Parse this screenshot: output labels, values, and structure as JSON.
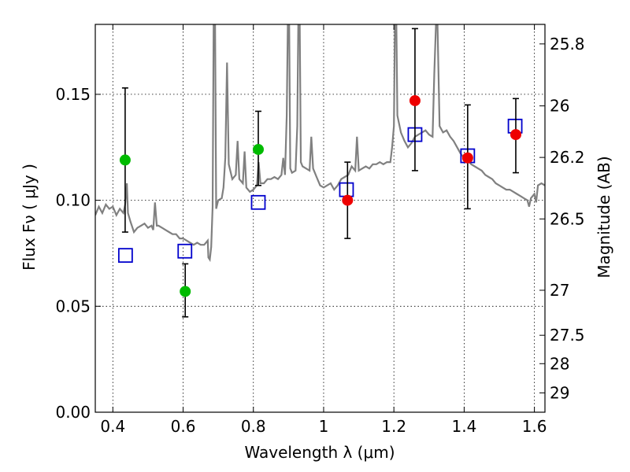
{
  "chart_data": {
    "type": "scatter",
    "xlabel": "Wavelength  λ (μm)",
    "ylabel": "Flux  Fν  ( μJy )",
    "ylabel_right": "Magnitude (AB)",
    "xlim": [
      0.35,
      1.63
    ],
    "ylim": [
      0.0,
      0.183
    ],
    "grid": true,
    "x_ticks": [
      0.4,
      0.6,
      0.8,
      1.0,
      1.2,
      1.4,
      1.6
    ],
    "x_tick_labels": [
      "0.4",
      "0.6",
      "0.8",
      "1",
      "1.2",
      "1.4",
      "1.6"
    ],
    "y_ticks": [
      0.0,
      0.05,
      0.1,
      0.15
    ],
    "y_tick_labels": [
      "0.00",
      "0.05",
      "0.10",
      "0.15"
    ],
    "right_ticks": [
      {
        "mag": 25.8,
        "label": "25.8"
      },
      {
        "mag": 26.0,
        "label": "26"
      },
      {
        "mag": 26.2,
        "label": "26.2"
      },
      {
        "mag": 26.5,
        "label": "26.5"
      },
      {
        "mag": 27.0,
        "label": "27"
      },
      {
        "mag": 27.5,
        "label": "27.5"
      },
      {
        "mag": 28.0,
        "label": "28"
      },
      {
        "mag": 29.0,
        "label": "29"
      }
    ],
    "model_spectrum": {
      "color": "#808080",
      "points": [
        [
          0.35,
          0.093
        ],
        [
          0.36,
          0.097
        ],
        [
          0.37,
          0.094
        ],
        [
          0.38,
          0.098
        ],
        [
          0.39,
          0.096
        ],
        [
          0.4,
          0.097
        ],
        [
          0.41,
          0.093
        ],
        [
          0.42,
          0.096
        ],
        [
          0.43,
          0.094
        ],
        [
          0.435,
          0.098
        ],
        [
          0.44,
          0.108
        ],
        [
          0.443,
          0.094
        ],
        [
          0.45,
          0.09
        ],
        [
          0.46,
          0.085
        ],
        [
          0.47,
          0.087
        ],
        [
          0.48,
          0.088
        ],
        [
          0.49,
          0.089
        ],
        [
          0.5,
          0.087
        ],
        [
          0.51,
          0.088
        ],
        [
          0.515,
          0.086
        ],
        [
          0.52,
          0.099
        ],
        [
          0.525,
          0.088
        ],
        [
          0.53,
          0.088
        ],
        [
          0.54,
          0.087
        ],
        [
          0.55,
          0.086
        ],
        [
          0.56,
          0.085
        ],
        [
          0.57,
          0.084
        ],
        [
          0.58,
          0.084
        ],
        [
          0.59,
          0.082
        ],
        [
          0.6,
          0.082
        ],
        [
          0.61,
          0.081
        ],
        [
          0.62,
          0.08
        ],
        [
          0.63,
          0.079
        ],
        [
          0.64,
          0.08
        ],
        [
          0.65,
          0.079
        ],
        [
          0.66,
          0.079
        ],
        [
          0.67,
          0.081
        ],
        [
          0.672,
          0.073
        ],
        [
          0.676,
          0.072
        ],
        [
          0.68,
          0.078
        ],
        [
          0.684,
          0.097
        ],
        [
          0.687,
          0.184
        ],
        [
          0.691,
          0.184
        ],
        [
          0.694,
          0.096
        ],
        [
          0.7,
          0.1
        ],
        [
          0.71,
          0.101
        ],
        [
          0.715,
          0.106
        ],
        [
          0.72,
          0.12
        ],
        [
          0.725,
          0.165
        ],
        [
          0.73,
          0.117
        ],
        [
          0.74,
          0.11
        ],
        [
          0.75,
          0.112
        ],
        [
          0.755,
          0.128
        ],
        [
          0.76,
          0.11
        ],
        [
          0.77,
          0.108
        ],
        [
          0.775,
          0.123
        ],
        [
          0.78,
          0.106
        ],
        [
          0.79,
          0.104
        ],
        [
          0.8,
          0.105
        ],
        [
          0.81,
          0.107
        ],
        [
          0.815,
          0.118
        ],
        [
          0.82,
          0.108
        ],
        [
          0.83,
          0.108
        ],
        [
          0.84,
          0.11
        ],
        [
          0.85,
          0.11
        ],
        [
          0.86,
          0.111
        ],
        [
          0.87,
          0.11
        ],
        [
          0.88,
          0.112
        ],
        [
          0.885,
          0.12
        ],
        [
          0.89,
          0.112
        ],
        [
          0.895,
          0.14
        ],
        [
          0.898,
          0.184
        ],
        [
          0.902,
          0.184
        ],
        [
          0.905,
          0.115
        ],
        [
          0.91,
          0.113
        ],
        [
          0.92,
          0.114
        ],
        [
          0.925,
          0.135
        ],
        [
          0.928,
          0.184
        ],
        [
          0.932,
          0.184
        ],
        [
          0.935,
          0.118
        ],
        [
          0.94,
          0.116
        ],
        [
          0.95,
          0.115
        ],
        [
          0.96,
          0.114
        ],
        [
          0.965,
          0.13
        ],
        [
          0.97,
          0.115
        ],
        [
          0.98,
          0.111
        ],
        [
          0.99,
          0.107
        ],
        [
          1.0,
          0.106
        ],
        [
          1.01,
          0.107
        ],
        [
          1.02,
          0.108
        ],
        [
          1.03,
          0.105
        ],
        [
          1.04,
          0.107
        ],
        [
          1.05,
          0.11
        ],
        [
          1.06,
          0.111
        ],
        [
          1.07,
          0.112
        ],
        [
          1.08,
          0.116
        ],
        [
          1.09,
          0.114
        ],
        [
          1.095,
          0.13
        ],
        [
          1.1,
          0.114
        ],
        [
          1.11,
          0.115
        ],
        [
          1.12,
          0.116
        ],
        [
          1.13,
          0.115
        ],
        [
          1.14,
          0.117
        ],
        [
          1.15,
          0.117
        ],
        [
          1.16,
          0.118
        ],
        [
          1.17,
          0.117
        ],
        [
          1.18,
          0.118
        ],
        [
          1.19,
          0.118
        ],
        [
          1.195,
          0.125
        ],
        [
          1.2,
          0.135
        ],
        [
          1.203,
          0.184
        ],
        [
          1.207,
          0.184
        ],
        [
          1.21,
          0.14
        ],
        [
          1.22,
          0.132
        ],
        [
          1.23,
          0.128
        ],
        [
          1.24,
          0.125
        ],
        [
          1.25,
          0.127
        ],
        [
          1.26,
          0.13
        ],
        [
          1.27,
          0.131
        ],
        [
          1.28,
          0.132
        ],
        [
          1.29,
          0.133
        ],
        [
          1.3,
          0.131
        ],
        [
          1.31,
          0.13
        ],
        [
          1.315,
          0.16
        ],
        [
          1.32,
          0.184
        ],
        [
          1.324,
          0.184
        ],
        [
          1.33,
          0.135
        ],
        [
          1.34,
          0.132
        ],
        [
          1.35,
          0.133
        ],
        [
          1.36,
          0.13
        ],
        [
          1.37,
          0.128
        ],
        [
          1.38,
          0.125
        ],
        [
          1.39,
          0.122
        ],
        [
          1.4,
          0.12
        ],
        [
          1.41,
          0.119
        ],
        [
          1.42,
          0.117
        ],
        [
          1.43,
          0.116
        ],
        [
          1.44,
          0.115
        ],
        [
          1.45,
          0.114
        ],
        [
          1.46,
          0.112
        ],
        [
          1.47,
          0.111
        ],
        [
          1.48,
          0.11
        ],
        [
          1.49,
          0.108
        ],
        [
          1.5,
          0.107
        ],
        [
          1.51,
          0.106
        ],
        [
          1.52,
          0.105
        ],
        [
          1.53,
          0.105
        ],
        [
          1.54,
          0.104
        ],
        [
          1.55,
          0.103
        ],
        [
          1.56,
          0.102
        ],
        [
          1.57,
          0.101
        ],
        [
          1.58,
          0.1
        ],
        [
          1.585,
          0.097
        ],
        [
          1.59,
          0.101
        ],
        [
          1.6,
          0.103
        ],
        [
          1.605,
          0.099
        ],
        [
          1.61,
          0.107
        ],
        [
          1.62,
          0.108
        ],
        [
          1.63,
          0.107
        ]
      ]
    },
    "observed_green": {
      "color": "#00bb00",
      "points": [
        {
          "x": 0.435,
          "y": 0.119,
          "ylo": 0.085,
          "yhi": 0.153
        },
        {
          "x": 0.606,
          "y": 0.057,
          "ylo": 0.045,
          "yhi": 0.07
        },
        {
          "x": 0.814,
          "y": 0.124,
          "ylo": 0.107,
          "yhi": 0.142
        }
      ]
    },
    "observed_red": {
      "color": "#ee0000",
      "points": [
        {
          "x": 1.068,
          "y": 0.1,
          "ylo": 0.082,
          "yhi": 0.118
        },
        {
          "x": 1.26,
          "y": 0.147,
          "ylo": 0.114,
          "yhi": 0.181
        },
        {
          "x": 1.41,
          "y": 0.12,
          "ylo": 0.096,
          "yhi": 0.145
        },
        {
          "x": 1.547,
          "y": 0.131,
          "ylo": 0.113,
          "yhi": 0.148
        }
      ]
    },
    "model_photometry": {
      "color": "#0000cc",
      "points": [
        {
          "x": 0.436,
          "y": 0.074
        },
        {
          "x": 0.605,
          "y": 0.076
        },
        {
          "x": 0.814,
          "y": 0.099
        },
        {
          "x": 1.065,
          "y": 0.105
        },
        {
          "x": 1.26,
          "y": 0.131
        },
        {
          "x": 1.41,
          "y": 0.121
        },
        {
          "x": 1.545,
          "y": 0.135
        }
      ]
    }
  }
}
